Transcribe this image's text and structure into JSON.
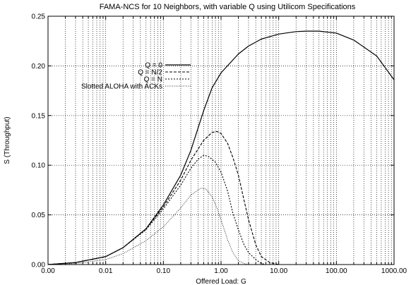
{
  "chart_data": {
    "type": "line",
    "title": "FAMA-NCS for 10 Neighbors, with variable Q using Utilicom Specifications",
    "xlabel": "Offered Load: G",
    "ylabel": "S (Throughput)",
    "x_scale": "log",
    "xlim": [
      0.001,
      1000
    ],
    "ylim": [
      0,
      0.25
    ],
    "x_tick_labels": [
      "0.00",
      "0.01",
      "0.10",
      "1.00",
      "10.00",
      "100.00",
      "1000.00"
    ],
    "y_tick_labels": [
      "0.00",
      "0.05",
      "0.10",
      "0.15",
      "0.20",
      "0.25"
    ],
    "grid": true,
    "legend_position": "top-left",
    "series": [
      {
        "name": "Q =  0",
        "dash": "solid",
        "points": [
          [
            0.001,
            0
          ],
          [
            0.003,
            0.002
          ],
          [
            0.01,
            0.008
          ],
          [
            0.02,
            0.017
          ],
          [
            0.05,
            0.036
          ],
          [
            0.1,
            0.06
          ],
          [
            0.2,
            0.09
          ],
          [
            0.3,
            0.115
          ],
          [
            0.5,
            0.155
          ],
          [
            0.7,
            0.178
          ],
          [
            1,
            0.193
          ],
          [
            2,
            0.212
          ],
          [
            3,
            0.22
          ],
          [
            5,
            0.227
          ],
          [
            10,
            0.232
          ],
          [
            20,
            0.2345
          ],
          [
            30,
            0.235
          ],
          [
            50,
            0.235
          ],
          [
            100,
            0.233
          ],
          [
            200,
            0.226
          ],
          [
            500,
            0.21
          ],
          [
            1000,
            0.186
          ]
        ]
      },
      {
        "name": "Q = N/2",
        "dash": "dashed",
        "points": [
          [
            0.001,
            0
          ],
          [
            0.003,
            0.002
          ],
          [
            0.01,
            0.008
          ],
          [
            0.02,
            0.017
          ],
          [
            0.05,
            0.036
          ],
          [
            0.1,
            0.058
          ],
          [
            0.2,
            0.085
          ],
          [
            0.3,
            0.105
          ],
          [
            0.5,
            0.125
          ],
          [
            0.7,
            0.133
          ],
          [
            0.85,
            0.134
          ],
          [
            1,
            0.132
          ],
          [
            1.3,
            0.122
          ],
          [
            1.6,
            0.108
          ],
          [
            2,
            0.09
          ],
          [
            2.5,
            0.065
          ],
          [
            3,
            0.045
          ],
          [
            4,
            0.02
          ],
          [
            5,
            0.008
          ],
          [
            7,
            0.002
          ],
          [
            10,
            0
          ]
        ]
      },
      {
        "name": "Q =  N",
        "dash": "dotted",
        "points": [
          [
            0.001,
            0
          ],
          [
            0.003,
            0.002
          ],
          [
            0.01,
            0.008
          ],
          [
            0.02,
            0.017
          ],
          [
            0.05,
            0.035
          ],
          [
            0.1,
            0.056
          ],
          [
            0.2,
            0.08
          ],
          [
            0.3,
            0.097
          ],
          [
            0.4,
            0.106
          ],
          [
            0.5,
            0.11
          ],
          [
            0.6,
            0.109
          ],
          [
            0.8,
            0.103
          ],
          [
            1,
            0.093
          ],
          [
            1.3,
            0.074
          ],
          [
            1.6,
            0.052
          ],
          [
            2,
            0.035
          ],
          [
            2.5,
            0.02
          ],
          [
            3,
            0.012
          ],
          [
            4,
            0.005
          ],
          [
            5,
            0.001
          ],
          [
            6,
            0
          ]
        ]
      },
      {
        "name": "Slotted ALOHA with ACKs",
        "dash": "fine-dotted",
        "points": [
          [
            0.001,
            0
          ],
          [
            0.003,
            0.001
          ],
          [
            0.01,
            0.005
          ],
          [
            0.02,
            0.011
          ],
          [
            0.05,
            0.024
          ],
          [
            0.1,
            0.038
          ],
          [
            0.2,
            0.057
          ],
          [
            0.3,
            0.07
          ],
          [
            0.45,
            0.077
          ],
          [
            0.55,
            0.076
          ],
          [
            0.7,
            0.068
          ],
          [
            0.85,
            0.057
          ],
          [
            1,
            0.045
          ],
          [
            1.3,
            0.025
          ],
          [
            1.6,
            0.012
          ],
          [
            2,
            0.004
          ],
          [
            2.5,
            0.001
          ],
          [
            3,
            0
          ]
        ]
      }
    ]
  }
}
